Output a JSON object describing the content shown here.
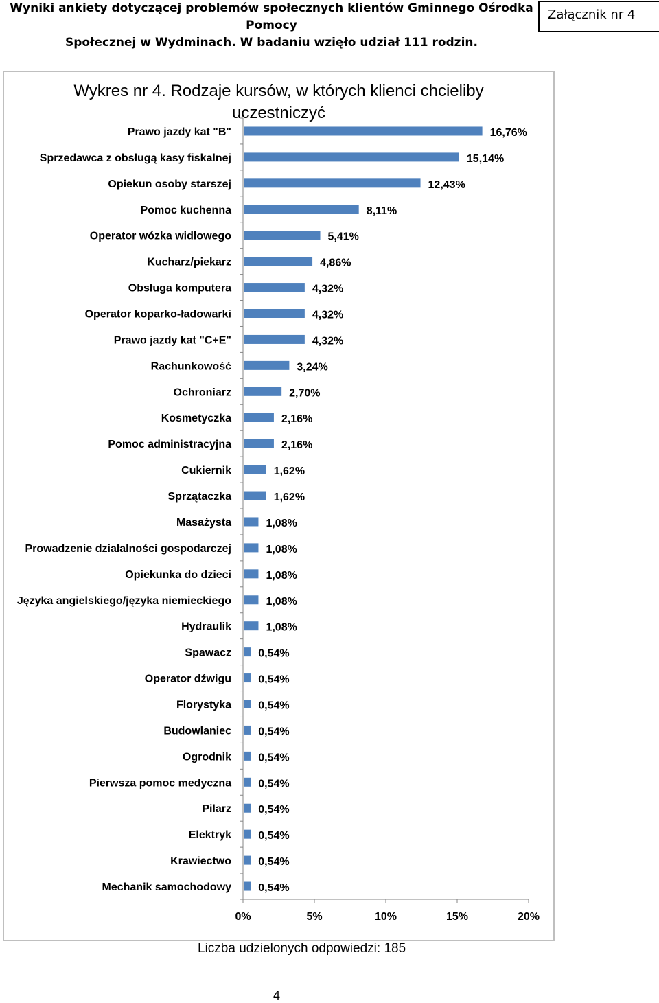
{
  "header": {
    "title_line1": "Wyniki ankiety dotyczącej problemów społecznych klientów Gminnego Ośrodka Pomocy",
    "title_line2": "Społecznej w Wydminach. W badaniu wzięło udział 111 rodzin.",
    "attachment": "Załącznik nr 4"
  },
  "chart_data": {
    "type": "bar",
    "orientation": "horizontal",
    "title_line1": "Wykres nr 4. Rodzaje kursów, w których klienci chcieliby",
    "title_line2": "uczestniczyć",
    "categories": [
      "Prawo jazdy kat \"B\"",
      "Sprzedawca z obsługą kasy fiskalnej",
      "Opiekun osoby starszej",
      "Pomoc kuchenna",
      "Operator wózka widłowego",
      "Kucharz/piekarz",
      "Obsługa komputera",
      "Operator koparko-ładowarki",
      "Prawo jazdy kat \"C+E\"",
      "Rachunkowość",
      "Ochroniarz",
      "Kosmetyczka",
      "Pomoc administracyjna",
      "Cukiernik",
      "Sprzątaczka",
      "Masażysta",
      "Prowadzenie działalności gospodarczej",
      "Opiekunka do dzieci",
      "Języka angielskiego/języka niemieckiego",
      "Hydraulik",
      "Spawacz",
      "Operator dźwigu",
      "Florystyka",
      "Budowlaniec",
      "Ogrodnik",
      "Pierwsza pomoc medyczna",
      "Pilarz",
      "Elektryk",
      "Krawiectwo",
      "Mechanik samochodowy"
    ],
    "values": [
      16.76,
      15.14,
      12.43,
      8.11,
      5.41,
      4.86,
      4.32,
      4.32,
      4.32,
      3.24,
      2.7,
      2.16,
      2.16,
      1.62,
      1.62,
      1.08,
      1.08,
      1.08,
      1.08,
      1.08,
      0.54,
      0.54,
      0.54,
      0.54,
      0.54,
      0.54,
      0.54,
      0.54,
      0.54,
      0.54
    ],
    "value_labels": [
      "16,76%",
      "15,14%",
      "12,43%",
      "8,11%",
      "5,41%",
      "4,86%",
      "4,32%",
      "4,32%",
      "4,32%",
      "3,24%",
      "2,70%",
      "2,16%",
      "2,16%",
      "1,62%",
      "1,62%",
      "1,08%",
      "1,08%",
      "1,08%",
      "1,08%",
      "1,08%",
      "0,54%",
      "0,54%",
      "0,54%",
      "0,54%",
      "0,54%",
      "0,54%",
      "0,54%",
      "0,54%",
      "0,54%",
      "0,54%"
    ],
    "xlim": [
      0,
      20
    ],
    "x_ticks": [
      0,
      5,
      10,
      15,
      20
    ],
    "x_tick_labels": [
      "0%",
      "5%",
      "10%",
      "15%",
      "20%"
    ],
    "bar_color": "#4f81bd",
    "grid": false,
    "legend": "none"
  },
  "footer": {
    "note": "Liczba udzielonych odpowiedzi: 185",
    "page_number": "4"
  }
}
